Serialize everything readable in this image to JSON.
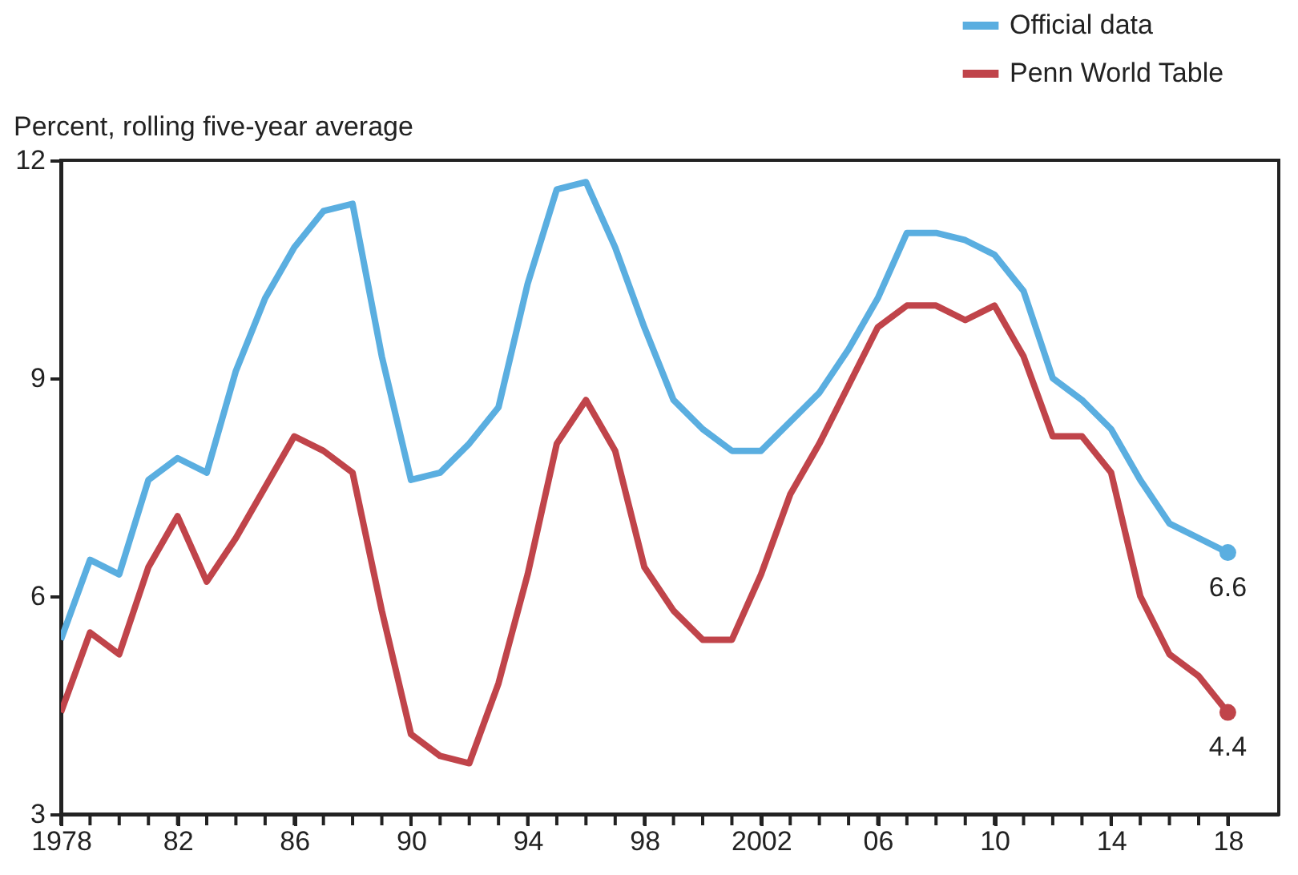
{
  "chart_data": {
    "type": "line",
    "ylabel": "Percent, rolling five-year average",
    "x": [
      "1978",
      "1979",
      "1980",
      "1981",
      "1982",
      "1983",
      "1984",
      "1985",
      "1986",
      "1987",
      "1988",
      "1989",
      "1990",
      "1991",
      "1992",
      "1993",
      "1994",
      "1995",
      "1996",
      "1997",
      "1998",
      "1999",
      "2000",
      "2001",
      "2002",
      "2003",
      "2004",
      "2005",
      "2006",
      "2007",
      "2008",
      "2009",
      "2010",
      "2011",
      "2012",
      "2013",
      "2014",
      "2015",
      "2016",
      "2017",
      "2018"
    ],
    "series": [
      {
        "name": "Official data",
        "color": "#5aaee0",
        "values": [
          5.4,
          6.5,
          6.3,
          7.6,
          7.9,
          7.7,
          9.1,
          10.1,
          10.8,
          11.3,
          11.4,
          9.3,
          7.6,
          7.7,
          8.1,
          8.6,
          10.3,
          11.6,
          11.7,
          10.8,
          9.7,
          8.7,
          8.3,
          8.0,
          8.0,
          8.4,
          8.8,
          9.4,
          10.1,
          11.0,
          11.0,
          10.9,
          10.7,
          10.2,
          9.0,
          8.7,
          8.3,
          7.6,
          7.0,
          6.8,
          6.6
        ],
        "value_labels": [
          null,
          null,
          null,
          null,
          null,
          null,
          null,
          null,
          null,
          null,
          null,
          null,
          null,
          null,
          null,
          null,
          null,
          null,
          null,
          null,
          null,
          null,
          null,
          null,
          null,
          null,
          null,
          null,
          null,
          null,
          null,
          null,
          null,
          null,
          null,
          null,
          null,
          null,
          null,
          null,
          "6.6"
        ]
      },
      {
        "name": "Penn World Table",
        "color": "#c0444a",
        "values": [
          4.4,
          5.5,
          5.2,
          6.4,
          7.1,
          6.2,
          6.8,
          7.5,
          8.2,
          8.0,
          7.7,
          5.8,
          4.1,
          3.8,
          3.7,
          4.8,
          6.3,
          8.1,
          8.7,
          8.0,
          6.4,
          5.8,
          5.4,
          5.4,
          6.3,
          7.4,
          8.1,
          8.9,
          9.7,
          10.0,
          10.0,
          9.8,
          10.0,
          9.3,
          8.2,
          8.2,
          7.7,
          6.0,
          5.2,
          4.9,
          4.4
        ],
        "value_labels": [
          null,
          null,
          null,
          null,
          null,
          null,
          null,
          null,
          null,
          null,
          null,
          null,
          null,
          null,
          null,
          null,
          null,
          null,
          null,
          null,
          null,
          null,
          null,
          null,
          null,
          null,
          null,
          null,
          null,
          null,
          null,
          null,
          null,
          null,
          null,
          null,
          null,
          null,
          null,
          null,
          "4.4"
        ]
      }
    ],
    "xlim": [
      "1978",
      "2019-10"
    ],
    "xticks": [
      "1978",
      {
        "value": "1979",
        "label": null
      },
      {
        "value": "1980",
        "label": null
      },
      {
        "value": "1981",
        "label": null
      },
      {
        "value": "1982",
        "label": "82"
      },
      {
        "value": "1983",
        "label": null
      },
      {
        "value": "1984",
        "label": null
      },
      {
        "value": "1985",
        "label": null
      },
      {
        "value": "1986",
        "label": "86"
      },
      {
        "value": "1987",
        "label": null
      },
      {
        "value": "1988",
        "label": null
      },
      {
        "value": "1989",
        "label": null
      },
      {
        "value": "1990",
        "label": "90"
      },
      {
        "value": "1991",
        "label": null
      },
      {
        "value": "1992",
        "label": null
      },
      {
        "value": "1993",
        "label": null
      },
      {
        "value": "1994",
        "label": "94"
      },
      {
        "value": "1995",
        "label": null
      },
      {
        "value": "1996",
        "label": null
      },
      {
        "value": "1997",
        "label": null
      },
      {
        "value": "1998",
        "label": "98"
      },
      {
        "value": "1999",
        "label": null
      },
      {
        "value": "2000",
        "label": null
      },
      {
        "value": "2001",
        "label": null
      },
      "2002",
      {
        "value": "2003",
        "label": null
      },
      {
        "value": "2004",
        "label": null
      },
      {
        "value": "2005",
        "label": null
      },
      {
        "value": "2006",
        "label": "06"
      },
      {
        "value": "2007",
        "label": null
      },
      {
        "value": "2008",
        "label": null
      },
      {
        "value": "2009",
        "label": null
      },
      {
        "value": "2010",
        "label": "10"
      },
      {
        "value": "2011",
        "label": null
      },
      {
        "value": "2012",
        "label": null
      },
      {
        "value": "2013",
        "label": null
      },
      {
        "value": "2014",
        "label": "14"
      },
      {
        "value": "2015",
        "label": null
      },
      {
        "value": "2016",
        "label": null
      },
      {
        "value": "2017",
        "label": null
      },
      {
        "value": "2018",
        "label": "18"
      }
    ],
    "ylim": [
      3,
      12
    ],
    "yticks": [
      3,
      6,
      9,
      12
    ],
    "legend": "top right"
  }
}
